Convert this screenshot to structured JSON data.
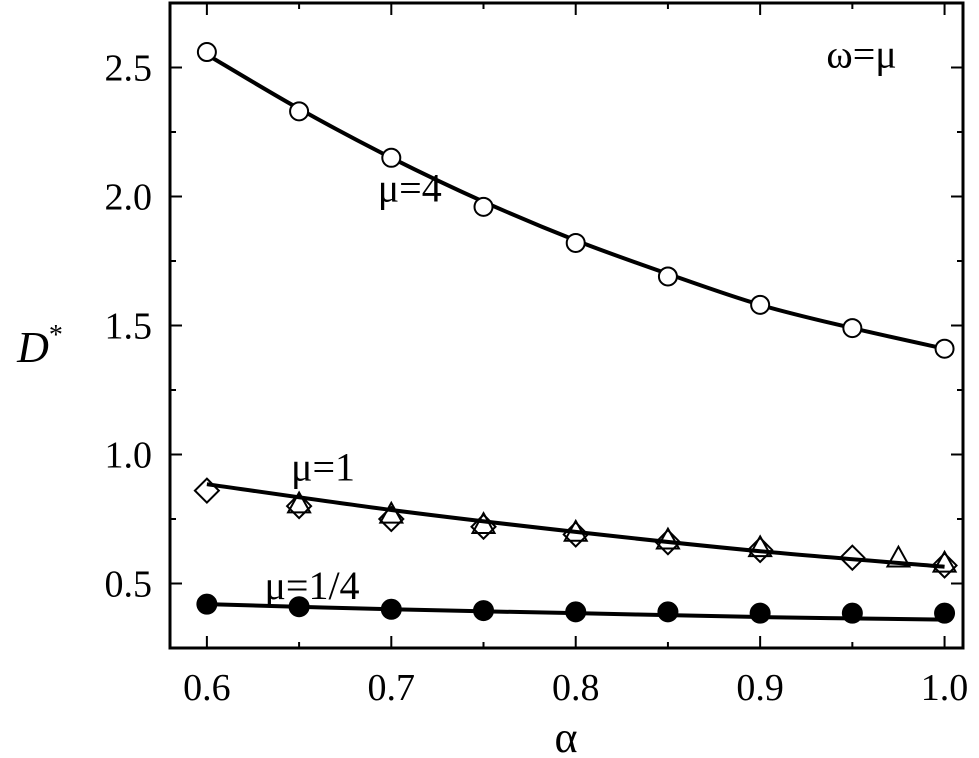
{
  "chart_data": {
    "type": "scatter",
    "xlabel": "α",
    "ylabel_main": "D",
    "ylabel_sup": "*",
    "xlim": [
      0.58,
      1.01
    ],
    "ylim": [
      0.25,
      2.75
    ],
    "xticks": [
      0.6,
      0.7,
      0.8,
      0.9,
      1.0
    ],
    "xtick_labels": [
      "0.6",
      "0.7",
      "0.8",
      "0.9",
      "1.0"
    ],
    "yticks": [
      0.5,
      1.0,
      1.5,
      2.0,
      2.5
    ],
    "ytick_labels": [
      "0.5",
      "1.0",
      "1.5",
      "2.0",
      "2.5"
    ],
    "annotations": [
      {
        "text": "ω=μ",
        "x": 0.955,
        "y": 2.5
      },
      {
        "text": "μ=4",
        "x": 0.71,
        "y": 1.98
      },
      {
        "text": "μ=1",
        "x": 0.663,
        "y": 0.9
      },
      {
        "text": "μ=1/4",
        "x": 0.657,
        "y": 0.44
      }
    ],
    "series": [
      {
        "marker": "open-circle",
        "x": [
          0.6,
          0.65,
          0.7,
          0.75,
          0.8,
          0.85,
          0.9,
          0.95,
          1.0
        ],
        "y": [
          2.56,
          2.33,
          2.15,
          1.96,
          1.82,
          1.69,
          1.58,
          1.49,
          1.41
        ]
      },
      {
        "marker": "open-diamond",
        "x": [
          0.6,
          0.65,
          0.7,
          0.75,
          0.8,
          0.85,
          0.9,
          0.95,
          1.0
        ],
        "y": [
          0.86,
          0.8,
          0.75,
          0.72,
          0.69,
          0.66,
          0.63,
          0.6,
          0.57
        ]
      },
      {
        "marker": "open-triangle",
        "x": [
          0.65,
          0.7,
          0.75,
          0.8,
          0.85,
          0.9,
          0.975,
          1.0
        ],
        "y": [
          0.81,
          0.77,
          0.73,
          0.7,
          0.67,
          0.64,
          0.6,
          0.58
        ]
      },
      {
        "marker": "filled-circle",
        "x": [
          0.6,
          0.65,
          0.7,
          0.75,
          0.8,
          0.85,
          0.9,
          0.95,
          1.0
        ],
        "y": [
          0.42,
          0.41,
          0.4,
          0.395,
          0.39,
          0.39,
          0.385,
          0.385,
          0.385
        ]
      }
    ],
    "curves": [
      {
        "x": [
          0.6,
          0.65,
          0.7,
          0.75,
          0.8,
          0.85,
          0.9,
          0.95,
          1.0
        ],
        "y": [
          2.55,
          2.34,
          2.15,
          1.98,
          1.83,
          1.7,
          1.58,
          1.49,
          1.41
        ]
      },
      {
        "x": [
          0.6,
          0.7,
          0.8,
          0.9,
          1.0
        ],
        "y": [
          0.885,
          0.785,
          0.7,
          0.625,
          0.565
        ]
      },
      {
        "x": [
          0.6,
          0.7,
          0.8,
          0.9,
          1.0
        ],
        "y": [
          0.42,
          0.4,
          0.385,
          0.37,
          0.36
        ]
      }
    ],
    "legend": "none",
    "grid": false
  }
}
